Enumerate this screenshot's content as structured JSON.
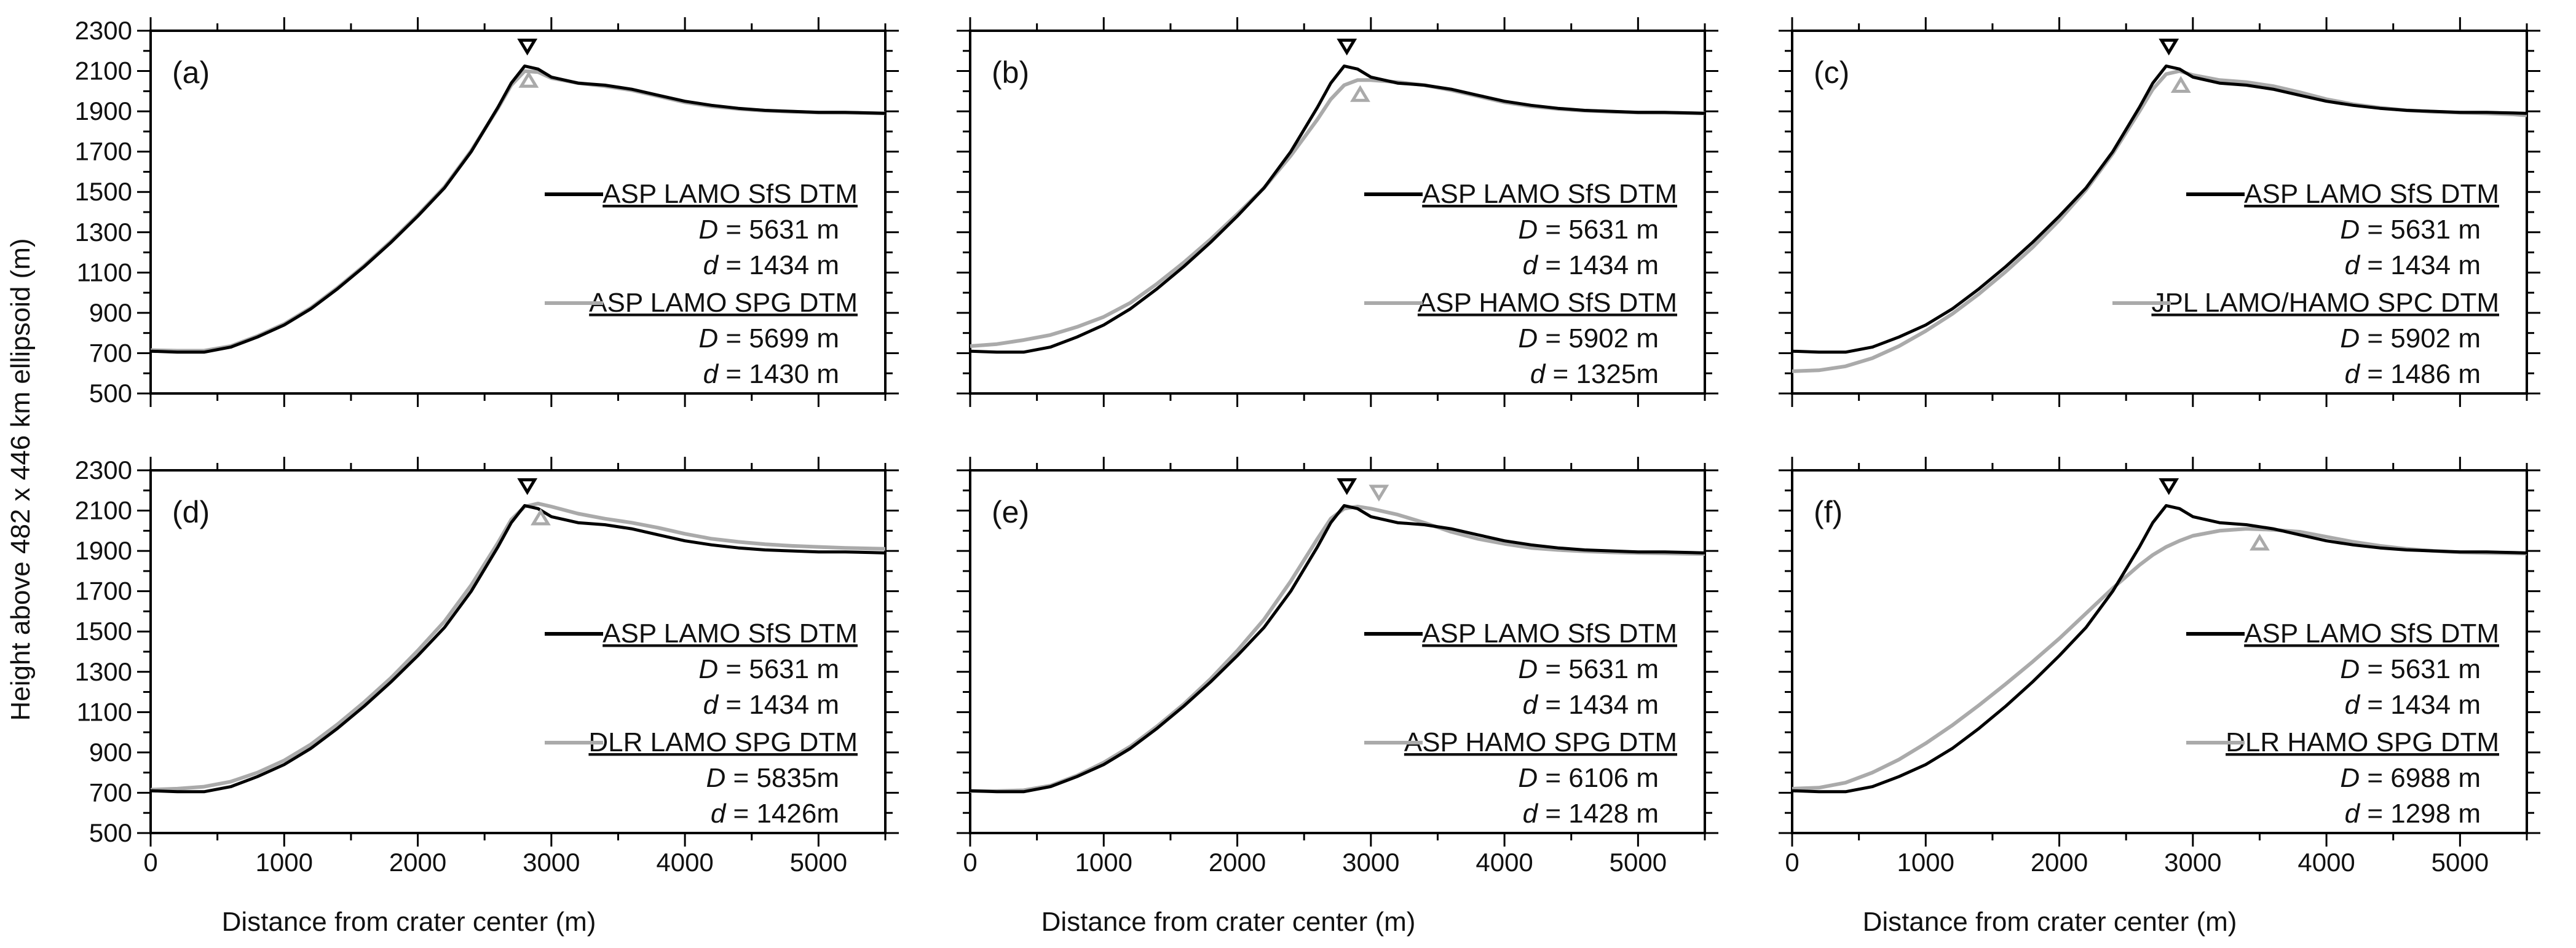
{
  "chart_data": {
    "type": "line",
    "ylabel": "Height above 482 x 446 km ellipsoid (m)",
    "xlabel": "Distance from crater center (m)",
    "xlim": [
      0,
      5500
    ],
    "ylim": [
      500,
      2300
    ],
    "xticks": [
      "0",
      "1000",
      "2000",
      "3000",
      "4000",
      "5000"
    ],
    "yticks": [
      "500",
      "700",
      "900",
      "1100",
      "1300",
      "1500",
      "1700",
      "1900",
      "2100",
      "2300"
    ],
    "reference": {
      "name": "ASP LAMO SfS DTM",
      "D": "= 5631 m",
      "d": "= 1434 m",
      "rim": {
        "x": 2820,
        "y": 2125
      },
      "x": [
        0,
        200,
        400,
        600,
        800,
        1000,
        1200,
        1400,
        1600,
        1800,
        2000,
        2200,
        2400,
        2600,
        2700,
        2800,
        2900,
        3000,
        3200,
        3400,
        3600,
        3800,
        4000,
        4200,
        4400,
        4600,
        4800,
        5000,
        5200,
        5400,
        5500
      ],
      "y": [
        710,
        705,
        705,
        730,
        780,
        840,
        920,
        1020,
        1130,
        1250,
        1380,
        1520,
        1700,
        1920,
        2040,
        2125,
        2110,
        2070,
        2040,
        2030,
        2010,
        1980,
        1950,
        1930,
        1915,
        1905,
        1900,
        1895,
        1895,
        1892,
        1890
      ]
    },
    "panels": [
      {
        "label": "(a)",
        "name": "ASP LAMO SPG DTM",
        "D": "= 5699 m",
        "d": "= 1430 m",
        "rim": {
          "x": 2830,
          "y": 2055
        },
        "x": [
          0,
          200,
          400,
          600,
          800,
          1000,
          1200,
          1400,
          1600,
          1800,
          2000,
          2200,
          2400,
          2600,
          2700,
          2800,
          2900,
          3000,
          3200,
          3400,
          3600,
          3800,
          4000,
          4200,
          4400,
          4600,
          4800,
          5000,
          5200,
          5400,
          5500
        ],
        "y": [
          715,
          712,
          712,
          735,
          785,
          845,
          925,
          1025,
          1135,
          1255,
          1385,
          1525,
          1705,
          1915,
          2030,
          2100,
          2095,
          2065,
          2040,
          2025,
          2005,
          1975,
          1945,
          1925,
          1912,
          1903,
          1898,
          1894,
          1893,
          1891,
          1890
        ]
      },
      {
        "label": "(b)",
        "name": "ASP HAMO SfS DTM",
        "D": "= 5902 m",
        "d": "= 1325m",
        "rim": {
          "x": 2920,
          "y": 1985
        },
        "x": [
          0,
          200,
          400,
          600,
          800,
          1000,
          1200,
          1400,
          1600,
          1800,
          2000,
          2200,
          2400,
          2600,
          2700,
          2800,
          2900,
          3000,
          3200,
          3400,
          3600,
          3800,
          4000,
          4200,
          4400,
          4600,
          4800,
          5000,
          5200,
          5400,
          5500
        ],
        "y": [
          735,
          745,
          765,
          790,
          830,
          880,
          950,
          1045,
          1150,
          1265,
          1390,
          1520,
          1680,
          1860,
          1960,
          2030,
          2055,
          2055,
          2045,
          2030,
          2005,
          1975,
          1945,
          1925,
          1912,
          1903,
          1898,
          1894,
          1893,
          1891,
          1890
        ]
      },
      {
        "label": "(c)",
        "name": "JPL LAMO/HAMO SPC DTM",
        "D": "= 5902 m",
        "d": "= 1486 m",
        "rim": {
          "x": 2910,
          "y": 2030
        },
        "x": [
          0,
          200,
          400,
          600,
          800,
          1000,
          1200,
          1400,
          1600,
          1800,
          2000,
          2200,
          2400,
          2600,
          2700,
          2800,
          2900,
          3000,
          3200,
          3400,
          3600,
          3800,
          4000,
          4200,
          4400,
          4600,
          4800,
          5000,
          5200,
          5400,
          5500
        ],
        "y": [
          610,
          615,
          635,
          675,
          735,
          810,
          895,
          995,
          1105,
          1225,
          1360,
          1510,
          1690,
          1900,
          2010,
          2085,
          2100,
          2080,
          2055,
          2045,
          2025,
          1995,
          1960,
          1935,
          1918,
          1905,
          1898,
          1893,
          1890,
          1885,
          1880
        ]
      },
      {
        "label": "(d)",
        "name": "DLR LAMO SPG DTM",
        "D": "= 5835m",
        "d": "= 1426m",
        "rim": {
          "x": 2920,
          "y": 2065
        },
        "x": [
          0,
          200,
          400,
          600,
          800,
          1000,
          1200,
          1400,
          1600,
          1800,
          2000,
          2200,
          2400,
          2600,
          2700,
          2800,
          2900,
          3000,
          3200,
          3400,
          3600,
          3800,
          4000,
          4200,
          4400,
          4600,
          4800,
          5000,
          5200,
          5400,
          5500
        ],
        "y": [
          715,
          720,
          730,
          755,
          800,
          860,
          940,
          1040,
          1150,
          1270,
          1405,
          1550,
          1730,
          1940,
          2055,
          2120,
          2135,
          2120,
          2085,
          2060,
          2040,
          2015,
          1985,
          1960,
          1945,
          1933,
          1925,
          1920,
          1915,
          1912,
          1910
        ]
      },
      {
        "label": "(e)",
        "name": "ASP HAMO SPG DTM",
        "D": "= 6106 m",
        "d": "= 1428 m",
        "rim": {
          "x": 3060,
          "y": 2190
        },
        "x": [
          0,
          200,
          400,
          600,
          800,
          1000,
          1200,
          1400,
          1600,
          1800,
          2000,
          2200,
          2400,
          2600,
          2700,
          2800,
          2900,
          3000,
          3200,
          3400,
          3600,
          3800,
          4000,
          4200,
          4400,
          4600,
          4800,
          5000,
          5200,
          5400,
          5500
        ],
        "y": [
          708,
          708,
          712,
          735,
          785,
          850,
          930,
          1030,
          1140,
          1265,
          1405,
          1560,
          1750,
          1960,
          2060,
          2110,
          2120,
          2110,
          2080,
          2040,
          1995,
          1960,
          1935,
          1915,
          1905,
          1898,
          1893,
          1890,
          1888,
          1886,
          1885
        ]
      },
      {
        "label": "(f)",
        "name": "DLR HAMO SPG DTM",
        "D": "= 6988 m",
        "d": "= 1298 m",
        "rim": {
          "x": 3500,
          "y": 1940
        },
        "x": [
          0,
          200,
          400,
          600,
          800,
          1000,
          1200,
          1400,
          1600,
          1800,
          2000,
          2200,
          2400,
          2600,
          2700,
          2800,
          2900,
          3000,
          3200,
          3400,
          3600,
          3800,
          4000,
          4200,
          4400,
          4600,
          4800,
          5000,
          5200,
          5400,
          5500
        ],
        "y": [
          720,
          725,
          750,
          800,
          865,
          945,
          1035,
          1135,
          1240,
          1350,
          1465,
          1590,
          1715,
          1830,
          1880,
          1920,
          1950,
          1975,
          2000,
          2010,
          2005,
          1995,
          1970,
          1945,
          1925,
          1910,
          1900,
          1893,
          1890,
          1888,
          1887
        ]
      }
    ]
  }
}
